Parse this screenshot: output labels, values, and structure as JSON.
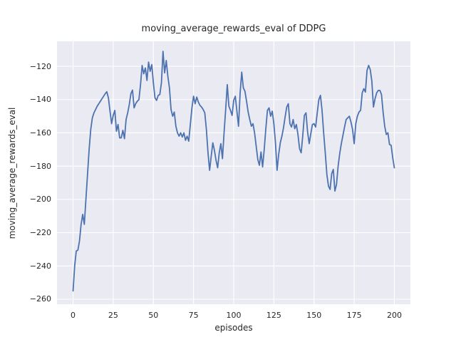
{
  "chart_data": {
    "type": "line",
    "title": "moving_average_rewards_eval of DDPG",
    "xlabel": "episodes",
    "ylabel": "moving_average_rewards_eval",
    "x_start": 0,
    "x_step": 1,
    "x_ticks": [
      0,
      25,
      50,
      75,
      100,
      125,
      150,
      175,
      200
    ],
    "y_ticks": [
      -260,
      -240,
      -220,
      -200,
      -180,
      -160,
      -140,
      -120
    ],
    "xlim": [
      -10,
      210
    ],
    "ylim": [
      -263,
      -105
    ],
    "grid": true,
    "legend": false,
    "line_color": "#4c72b0",
    "plot_bg": "#eaeaf2",
    "grid_color": "#ffffff",
    "text_color": "#262626",
    "values": [
      -255,
      -240,
      -231,
      -230.5,
      -225,
      -215,
      -209,
      -215,
      -200,
      -185,
      -170,
      -158,
      -151,
      -148,
      -146,
      -144,
      -142.5,
      -141,
      -139.5,
      -138,
      -136.5,
      -135.3,
      -139,
      -147,
      -154.5,
      -149.5,
      -146.5,
      -159,
      -155,
      -163,
      -163,
      -158.5,
      -163.5,
      -152,
      -148,
      -143,
      -136.5,
      -134.3,
      -145,
      -142.4,
      -141,
      -140,
      -131,
      -119.5,
      -124.5,
      -121,
      -128.5,
      -117.5,
      -123,
      -119,
      -130,
      -139,
      -140.5,
      -137.5,
      -137,
      -130,
      -111,
      -124,
      -116.5,
      -126,
      -133,
      -146,
      -150,
      -147.5,
      -156,
      -160,
      -162,
      -160,
      -162.5,
      -160,
      -164.5,
      -162,
      -165,
      -155,
      -145,
      -138,
      -142.5,
      -138.5,
      -141.5,
      -143.5,
      -144.5,
      -146,
      -148,
      -158,
      -172,
      -182.5,
      -174,
      -166,
      -170.5,
      -176.5,
      -181,
      -172,
      -166.5,
      -175.5,
      -160,
      -146,
      -131,
      -144,
      -146.5,
      -149.5,
      -140.5,
      -138,
      -147,
      -156,
      -136,
      -123.5,
      -133,
      -135,
      -141,
      -147.5,
      -152,
      -156,
      -154.5,
      -160,
      -168,
      -176,
      -179.5,
      -171.5,
      -180.5,
      -170,
      -157.5,
      -146.5,
      -145,
      -150,
      -147,
      -154.5,
      -166,
      -182.5,
      -173,
      -166,
      -162,
      -157,
      -150.5,
      -144.5,
      -142.5,
      -154.5,
      -156.5,
      -152,
      -157.5,
      -155,
      -161,
      -169.5,
      -172,
      -161.5,
      -149.5,
      -148,
      -159.5,
      -166.5,
      -160.5,
      -155,
      -154.5,
      -156.5,
      -148,
      -140,
      -137.5,
      -146.5,
      -160,
      -172,
      -185,
      -192,
      -194,
      -184.5,
      -182,
      -195,
      -191,
      -180,
      -172.5,
      -166.5,
      -161.5,
      -156.5,
      -152,
      -151,
      -150,
      -153.5,
      -158,
      -166.5,
      -154.5,
      -150,
      -147.5,
      -146.5,
      -136,
      -133.5,
      -135.5,
      -122.5,
      -119.5,
      -122,
      -129,
      -144.5,
      -139.5,
      -136,
      -134.5,
      -134.5,
      -137,
      -147.5,
      -156,
      -161,
      -160,
      -167,
      -167.5,
      -175,
      -181
    ]
  }
}
